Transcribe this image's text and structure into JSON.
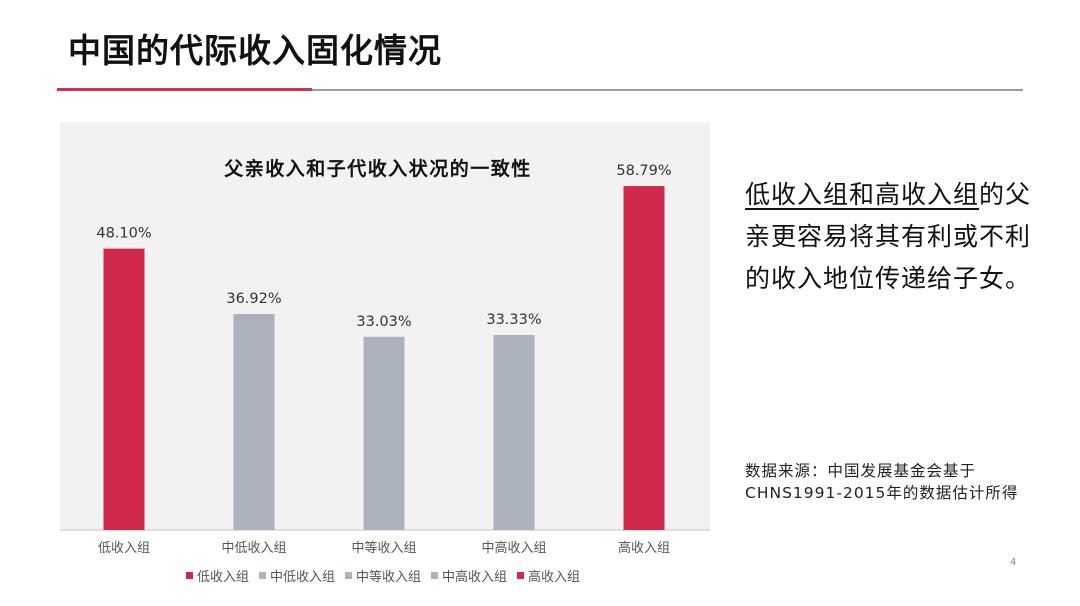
{
  "slide": {
    "title": "中国的代际收入固化情况",
    "page_number": "4",
    "side_text_highlight": "低收入组和高收入组",
    "side_text_rest": "的父亲更容易将其有利或不利的收入地位传递给子女。",
    "source": "数据来源：中国发展基金会基于CHNS1991-2015年的数据估计所得"
  },
  "colors": {
    "red": "#d0294b",
    "grey": "#abb2bd",
    "chart_bg": "#f2f2f2",
    "accent_rule": "#d0334d"
  },
  "chart_data": {
    "type": "bar",
    "title": "父亲收入和子代收入状况的一致性",
    "categories": [
      "低收入组",
      "中低收入组",
      "中等收入组",
      "中高收入组",
      "高收入组"
    ],
    "values": [
      48.1,
      36.92,
      33.03,
      33.33,
      58.79
    ],
    "data_labels": [
      "48.10%",
      "36.92%",
      "33.03%",
      "33.33%",
      "58.79%"
    ],
    "bar_colors": [
      "#d0294b",
      "#abb2bd",
      "#abb2bd",
      "#abb2bd",
      "#d0294b"
    ],
    "legend": [
      "低收入组",
      "中低收入组",
      "中等收入组",
      "中高收入组",
      "高收入组"
    ],
    "legend_position": "bottom",
    "ylim": [
      0,
      60
    ],
    "grid": false,
    "y_axis_shown": false
  }
}
